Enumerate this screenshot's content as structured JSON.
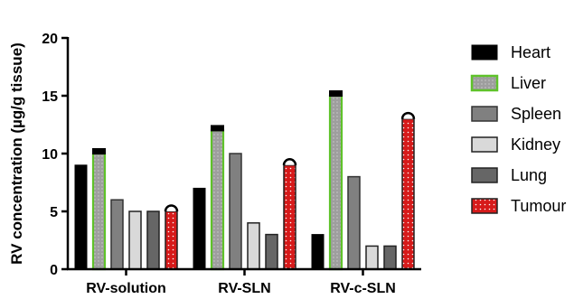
{
  "chart_data": {
    "type": "bar",
    "title": "",
    "xlabel": "",
    "ylabel": "RV concentration (µg/g tissue)",
    "ylim": [
      0,
      20
    ],
    "yticks": [
      "0",
      "5",
      "10",
      "15",
      "20"
    ],
    "categories": [
      "RV-solution",
      "RV-SLN",
      "RV-c-SLN"
    ],
    "legend_position": "right",
    "grid": false,
    "series": [
      {
        "name": "Heart",
        "values": [
          9,
          7,
          3
        ],
        "color": "#000000",
        "pattern": "solid",
        "has_error_cap": false
      },
      {
        "name": "Liver",
        "values": [
          10,
          12,
          15
        ],
        "color": "#7fcc3a",
        "pattern": "dotted-gray",
        "has_error_cap": true
      },
      {
        "name": "Spleen",
        "values": [
          6,
          10,
          8
        ],
        "color": "#808080",
        "pattern": "gray-outline",
        "has_error_cap": false
      },
      {
        "name": "Kidney",
        "values": [
          5,
          4,
          2
        ],
        "color": "#d9d9d9",
        "pattern": "light-gray",
        "has_error_cap": false
      },
      {
        "name": "Lung",
        "values": [
          5,
          3,
          2
        ],
        "color": "#666666",
        "pattern": "dark-gray",
        "has_error_cap": false
      },
      {
        "name": "Tumour",
        "values": [
          5,
          9,
          13
        ],
        "color": "#e02020",
        "pattern": "dotted-red",
        "has_error_cap": true
      }
    ]
  }
}
